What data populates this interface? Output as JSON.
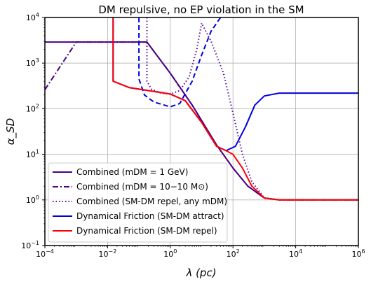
{
  "chart_data": {
    "type": "line",
    "title": "DM repulsive, no EP violation in the SM",
    "xlabel": "λ (pc)",
    "ylabel": "α_SD",
    "xscale": "log",
    "yscale": "log",
    "xlim": [
      0.0001,
      1000000
    ],
    "ylim": [
      0.1,
      10000
    ],
    "x_ticks": [
      {
        "value": 0.0001,
        "base": "10",
        "exp": "−4"
      },
      {
        "value": 0.01,
        "base": "10",
        "exp": "−2"
      },
      {
        "value": 1,
        "base": "10",
        "exp": "0"
      },
      {
        "value": 100,
        "base": "10",
        "exp": "2"
      },
      {
        "value": 10000,
        "base": "10",
        "exp": "4"
      },
      {
        "value": 1000000,
        "base": "10",
        "exp": "6"
      }
    ],
    "y_ticks": [
      {
        "value": 0.1,
        "base": "10",
        "exp": "−1"
      },
      {
        "value": 1,
        "base": "10",
        "exp": "0"
      },
      {
        "value": 10,
        "base": "10",
        "exp": "1"
      },
      {
        "value": 100,
        "base": "10",
        "exp": "2"
      },
      {
        "value": 1000,
        "base": "10",
        "exp": "3"
      },
      {
        "value": 10000,
        "base": "10",
        "exp": "4"
      }
    ],
    "grid": true,
    "legend_position": "lower-left",
    "series": [
      {
        "name": "Combined (m_DM = 1 GeV)",
        "color": "#4b0082",
        "style": "solid",
        "points": [
          [
            0.0001,
            2900
          ],
          [
            0.18,
            2900
          ],
          [
            1,
            600
          ],
          [
            5,
            120
          ],
          [
            30,
            16
          ],
          [
            100,
            5
          ],
          [
            300,
            2
          ],
          [
            1000,
            1.1
          ],
          [
            3000,
            1.0
          ],
          [
            1000000,
            1.0
          ]
        ]
      },
      {
        "name": "Combined (m_DM = 10^-10 M_⊙)",
        "color": "#4b0082",
        "style": "dashdot",
        "points": [
          [
            0.0001,
            260
          ],
          [
            0.001,
            2900
          ],
          [
            0.18,
            2900
          ],
          [
            1,
            600
          ],
          [
            5,
            120
          ],
          [
            30,
            16
          ],
          [
            100,
            5
          ],
          [
            300,
            2
          ],
          [
            1000,
            1.1
          ],
          [
            3000,
            1.0
          ],
          [
            1000000,
            1.0
          ]
        ]
      },
      {
        "name": "Combined (SM-DM repel, any m_DM)",
        "color": "#5a00a0",
        "style": "dotted",
        "points": [
          [
            0.18,
            10000
          ],
          [
            0.18,
            400
          ],
          [
            0.25,
            270
          ],
          [
            0.5,
            220
          ],
          [
            1,
            210
          ],
          [
            2,
            250
          ],
          [
            4,
            500
          ],
          [
            7,
            2000
          ],
          [
            10,
            7500
          ],
          [
            20,
            3000
          ],
          [
            50,
            600
          ],
          [
            100,
            80
          ],
          [
            200,
            10
          ],
          [
            400,
            2.5
          ],
          [
            1000,
            1.1
          ],
          [
            3000,
            1.0
          ],
          [
            1000000,
            1.0
          ]
        ]
      },
      {
        "name": "Dynamical Friction (SM-DM attract)",
        "color": "#0000e0",
        "style": "dashed",
        "points": [
          [
            0.1,
            10000
          ],
          [
            0.1,
            450
          ],
          [
            0.15,
            200
          ],
          [
            0.3,
            140
          ],
          [
            1,
            110
          ],
          [
            2,
            130
          ],
          [
            5,
            400
          ],
          [
            10,
            1500
          ],
          [
            20,
            5000
          ],
          [
            40,
            10000
          ]
        ]
      },
      {
        "name": "Dynamical Friction (SM-DM attract)",
        "color": "#0000e0",
        "style": "solid",
        "points": [
          [
            0.015,
            10000
          ],
          [
            0.015,
            400
          ],
          [
            0.05,
            290
          ],
          [
            0.2,
            250
          ],
          [
            1,
            210
          ],
          [
            3,
            150
          ],
          [
            10,
            50
          ],
          [
            30,
            15
          ],
          [
            60,
            12
          ],
          [
            120,
            15
          ],
          [
            250,
            40
          ],
          [
            500,
            120
          ],
          [
            1000,
            190
          ],
          [
            3000,
            220
          ],
          [
            1000000,
            220
          ]
        ]
      },
      {
        "name": "Dynamical Friction (SM-DM repel)",
        "color": "#ff0000",
        "style": "solid",
        "points": [
          [
            0.015,
            10000
          ],
          [
            0.015,
            400
          ],
          [
            0.05,
            290
          ],
          [
            0.2,
            250
          ],
          [
            1,
            210
          ],
          [
            3,
            150
          ],
          [
            10,
            50
          ],
          [
            30,
            15
          ],
          [
            60,
            12
          ],
          [
            100,
            10
          ],
          [
            200,
            5
          ],
          [
            400,
            2
          ],
          [
            1000,
            1.1
          ],
          [
            3000,
            1.0
          ],
          [
            1000000,
            1.0
          ]
        ]
      }
    ]
  },
  "legend": {
    "items": [
      {
        "label": "Combined (mDM = 1 GeV)",
        "color": "#4b0082",
        "style": "solid"
      },
      {
        "label": "Combined (mDM = 10−10 M⊙)",
        "color": "#4b0082",
        "style": "dashdot"
      },
      {
        "label": "Combined (SM-DM repel, any mDM)",
        "color": "#5a00a0",
        "style": "dotted"
      },
      {
        "label": "Dynamical Friction (SM-DM attract)",
        "color": "#0000e0",
        "style": "solid"
      },
      {
        "label": "Dynamical Friction (SM-DM repel)",
        "color": "#ff0000",
        "style": "solid"
      }
    ]
  }
}
